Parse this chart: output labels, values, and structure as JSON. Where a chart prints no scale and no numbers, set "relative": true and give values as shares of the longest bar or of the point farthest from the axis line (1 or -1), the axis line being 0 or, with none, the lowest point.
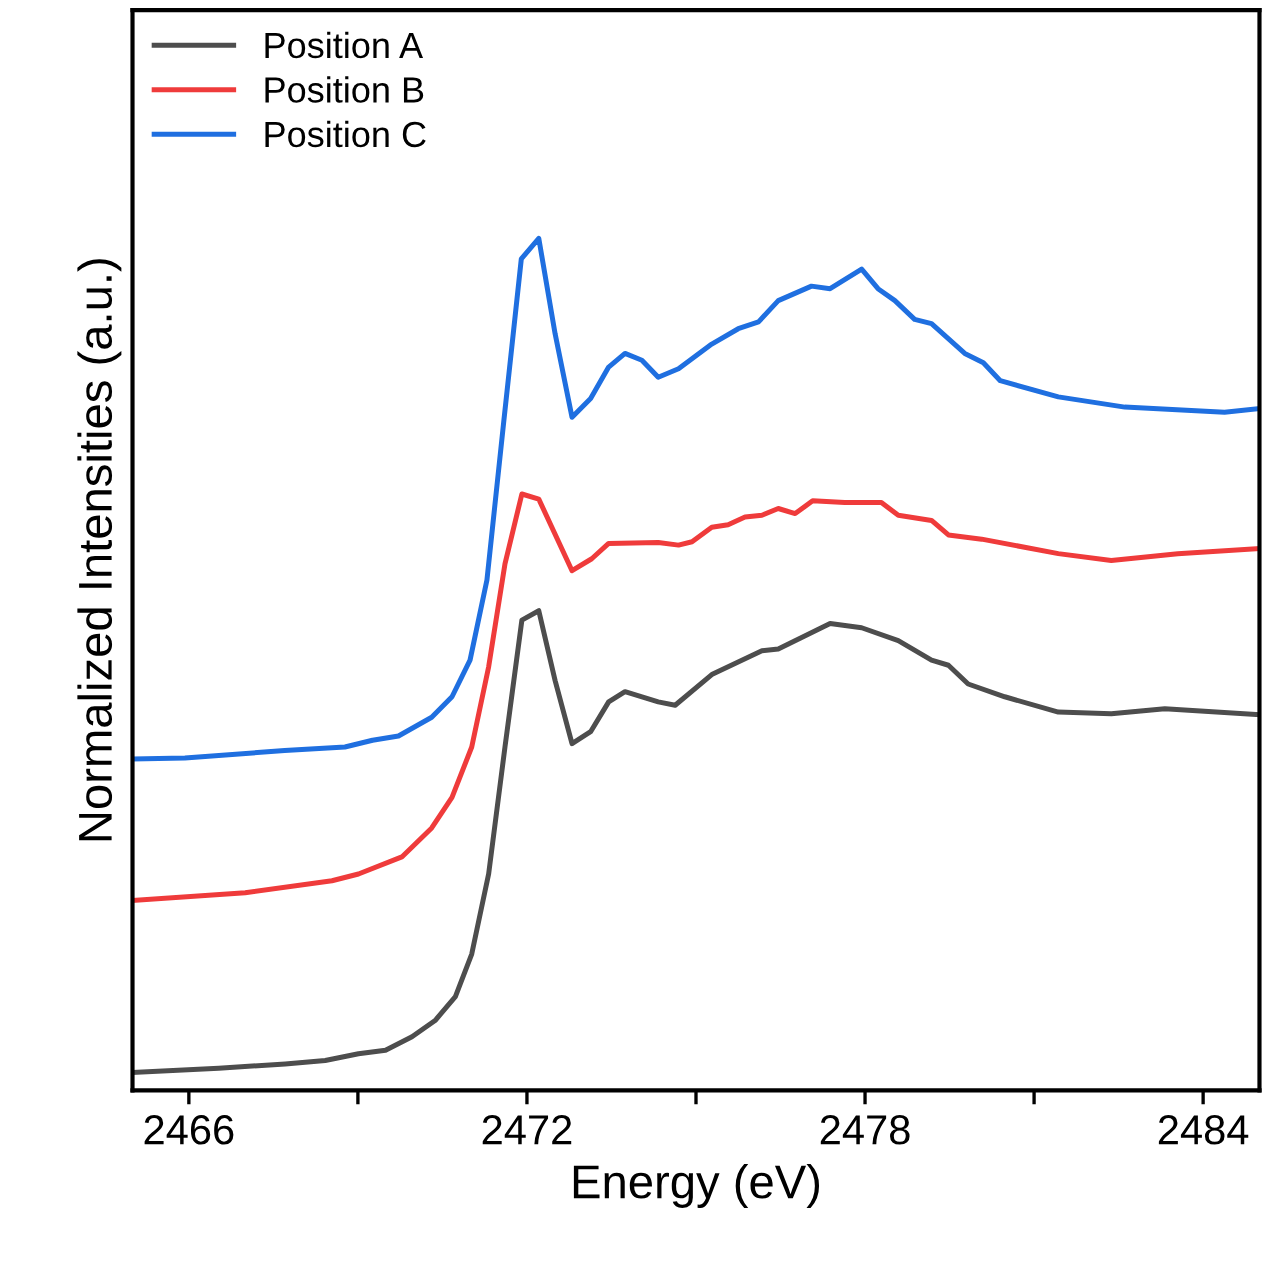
{
  "chart_data": {
    "type": "line",
    "xlabel": "Energy (eV)",
    "ylabel": "Normalized Intensities (a.u.)",
    "relative": true,
    "xlim": [
      2465,
      2485
    ],
    "xticks": [
      2466,
      {
        "value": 2469,
        "label": null
      },
      2472,
      {
        "value": 2475,
        "label": null
      },
      2478,
      {
        "value": 2481,
        "label": null
      },
      2484
    ],
    "grid": false,
    "legend": "top left",
    "marker": "none",
    "line_style": "solid",
    "series": [
      {
        "name": "Position A",
        "color": "#4d4d4d",
        "x": [
          2465.0,
          2466.53,
          2467.71,
          2468.42,
          2469.01,
          2469.49,
          2469.96,
          2470.37,
          2470.73,
          2471.02,
          2471.32,
          2471.61,
          2471.91,
          2472.21,
          2472.5,
          2472.8,
          2473.13,
          2473.45,
          2473.74,
          2474.33,
          2474.63,
          2475.28,
          2476.17,
          2476.46,
          2477.38,
          2477.94,
          2478.59,
          2479.18,
          2479.48,
          2479.83,
          2480.48,
          2481.43,
          2482.37,
          2483.32,
          2484.97
        ],
        "values": [
          0.021,
          0.026,
          0.031,
          0.035,
          0.043,
          0.047,
          0.063,
          0.082,
          0.11,
          0.16,
          0.254,
          0.403,
          0.552,
          0.563,
          0.481,
          0.407,
          0.421,
          0.456,
          0.468,
          0.456,
          0.452,
          0.488,
          0.516,
          0.518,
          0.548,
          0.543,
          0.528,
          0.505,
          0.499,
          0.477,
          0.462,
          0.444,
          0.442,
          0.448,
          0.441
        ]
      },
      {
        "name": "Position B",
        "color": "#ef3b3b",
        "x": [
          2465.0,
          2467.0,
          2468.54,
          2469.01,
          2469.78,
          2470.31,
          2470.67,
          2471.02,
          2471.32,
          2471.61,
          2471.91,
          2472.21,
          2472.8,
          2473.15,
          2473.45,
          2474.33,
          2474.69,
          2474.93,
          2475.28,
          2475.57,
          2475.87,
          2476.17,
          2476.46,
          2476.76,
          2477.07,
          2477.64,
          2478.29,
          2478.59,
          2479.18,
          2479.48,
          2480.07,
          2481.43,
          2482.37,
          2483.55,
          2484.97
        ],
        "values": [
          0.223,
          0.232,
          0.246,
          0.254,
          0.274,
          0.308,
          0.344,
          0.403,
          0.497,
          0.618,
          0.7,
          0.694,
          0.61,
          0.624,
          0.642,
          0.643,
          0.64,
          0.644,
          0.661,
          0.664,
          0.673,
          0.675,
          0.683,
          0.677,
          0.692,
          0.69,
          0.69,
          0.675,
          0.669,
          0.652,
          0.647,
          0.63,
          0.622,
          0.63,
          0.636
        ]
      },
      {
        "name": "Position C",
        "color": "#1f6fe0",
        "x": [
          2465.0,
          2465.93,
          2467.7,
          2468.77,
          2469.26,
          2469.72,
          2470.31,
          2470.67,
          2470.99,
          2471.29,
          2471.59,
          2471.9,
          2472.21,
          2472.5,
          2472.8,
          2473.13,
          2473.45,
          2473.74,
          2474.04,
          2474.33,
          2474.69,
          2475.28,
          2475.75,
          2476.11,
          2476.46,
          2477.05,
          2477.38,
          2477.94,
          2478.23,
          2478.53,
          2478.88,
          2479.18,
          2479.77,
          2480.1,
          2480.4,
          2481.43,
          2482.61,
          2484.38,
          2484.97
        ],
        "values": [
          0.389,
          0.39,
          0.399,
          0.403,
          0.411,
          0.416,
          0.438,
          0.462,
          0.505,
          0.599,
          0.786,
          0.976,
          1.0,
          0.888,
          0.79,
          0.812,
          0.849,
          0.865,
          0.857,
          0.837,
          0.847,
          0.876,
          0.894,
          0.902,
          0.927,
          0.944,
          0.941,
          0.964,
          0.941,
          0.927,
          0.905,
          0.9,
          0.865,
          0.854,
          0.833,
          0.814,
          0.802,
          0.796,
          0.8
        ]
      }
    ]
  }
}
